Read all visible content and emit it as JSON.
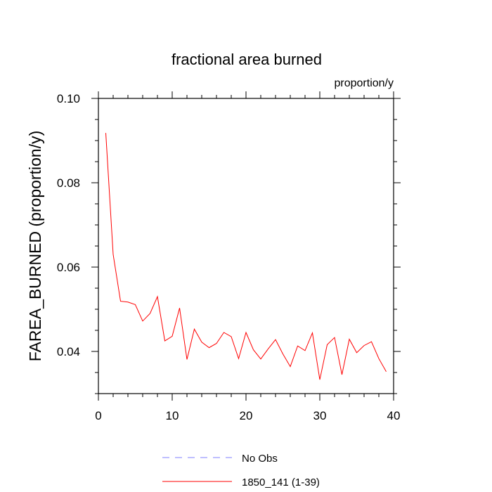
{
  "chart_data": {
    "type": "line",
    "title": "fractional area burned",
    "units_label": "proportion/y",
    "ylabel": "FAREA_BURNED  (proportion/y)",
    "xlabel": "",
    "xlim": [
      0,
      40
    ],
    "ylim": [
      0.03,
      0.1
    ],
    "x_ticks": [
      0,
      10,
      20,
      30,
      40
    ],
    "x_tick_labels": [
      "0",
      "10",
      "20",
      "30",
      "40"
    ],
    "y_ticks": [
      0.04,
      0.06,
      0.08,
      0.1
    ],
    "y_tick_labels": [
      "0.04",
      "0.06",
      "0.08",
      "0.10"
    ],
    "grid": false,
    "legend_position": "bottom",
    "series": [
      {
        "name": "No Obs",
        "color": "#8080ff",
        "style": "dashed",
        "x": [],
        "values": []
      },
      {
        "name": "1850_141 (1-39)",
        "color": "#ff0000",
        "style": "solid",
        "x": [
          1,
          2,
          3,
          4,
          5,
          6,
          7,
          8,
          9,
          10,
          11,
          12,
          13,
          14,
          15,
          16,
          17,
          18,
          19,
          20,
          21,
          22,
          23,
          24,
          25,
          26,
          27,
          28,
          29,
          30,
          31,
          32,
          33,
          34,
          35,
          36,
          37,
          38,
          39
        ],
        "values": [
          0.0918,
          0.063,
          0.0519,
          0.0517,
          0.0511,
          0.0472,
          0.049,
          0.053,
          0.0425,
          0.0436,
          0.0503,
          0.0381,
          0.0453,
          0.0422,
          0.0409,
          0.0419,
          0.0445,
          0.0435,
          0.0383,
          0.0445,
          0.0404,
          0.0382,
          0.0406,
          0.0428,
          0.0394,
          0.0364,
          0.0413,
          0.0402,
          0.0444,
          0.0333,
          0.0416,
          0.0433,
          0.0345,
          0.0429,
          0.0397,
          0.0414,
          0.0423,
          0.0383,
          0.0352
        ]
      }
    ]
  }
}
